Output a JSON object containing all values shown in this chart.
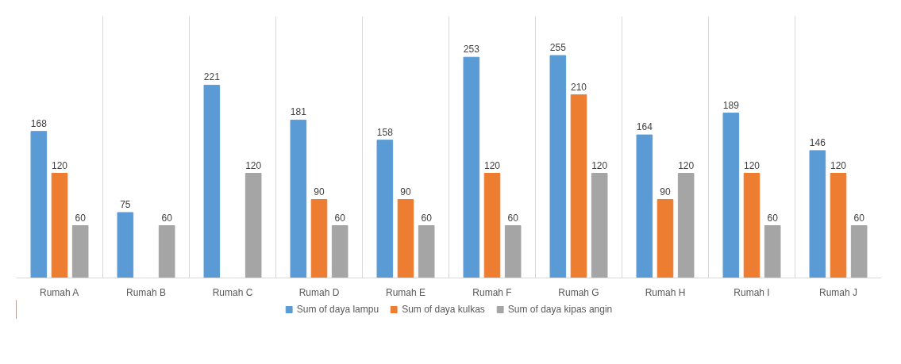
{
  "chart_data": {
    "type": "bar",
    "categories": [
      "Rumah A",
      "Rumah B",
      "Rumah C",
      "Rumah D",
      "Rumah E",
      "Rumah F",
      "Rumah G",
      "Rumah H",
      "Rumah I",
      "Rumah J"
    ],
    "series": [
      {
        "name": "Sum of daya lampu",
        "color": "#5b9bd5",
        "values": [
          168,
          75,
          221,
          181,
          158,
          253,
          255,
          164,
          189,
          146
        ]
      },
      {
        "name": "Sum of daya kulkas",
        "color": "#ed7d31",
        "values": [
          120,
          null,
          null,
          90,
          90,
          120,
          210,
          90,
          120,
          120
        ]
      },
      {
        "name": "Sum of daya kipas angin",
        "color": "#a5a5a5",
        "values": [
          60,
          60,
          120,
          60,
          60,
          60,
          120,
          120,
          60,
          60
        ]
      }
    ],
    "ylim": [
      0,
      300
    ],
    "data_labels": true,
    "grid": "x",
    "legend": "bottom",
    "tick_labels": "x"
  }
}
